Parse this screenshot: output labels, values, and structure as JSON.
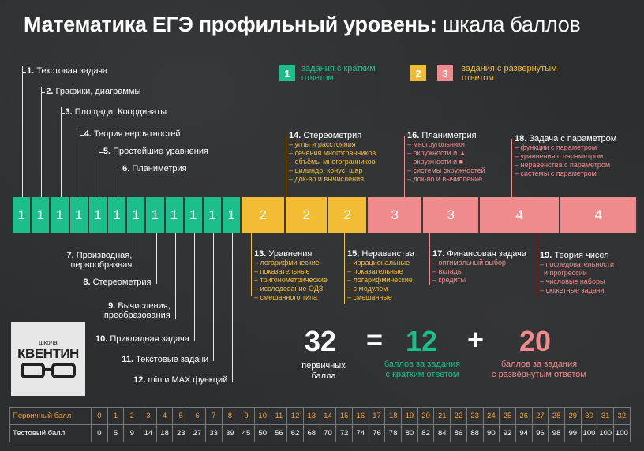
{
  "title": {
    "bold": "Математика ЕГЭ профильный уровень:",
    "light": " шкала баллов"
  },
  "legend": {
    "short": {
      "num": "1",
      "text": "задания с кратким ответом"
    },
    "long": {
      "num_a": "2",
      "num_b": "3",
      "text": "задания с развернутым ответом"
    },
    "colors": {
      "green": "#1bbf8c",
      "yellow": "#f2bd34",
      "pink": "#ef8b8c"
    }
  },
  "top_tasks": [
    {
      "n": "1.",
      "label": "Текстовая задача"
    },
    {
      "n": "2.",
      "label": "Графики, диаграммы"
    },
    {
      "n": "3.",
      "label": "Площади. Координаты"
    },
    {
      "n": "4.",
      "label": "Теория вероятностей"
    },
    {
      "n": "5.",
      "label": "Простейшие уравнения"
    },
    {
      "n": "6.",
      "label": "Планиметрия"
    }
  ],
  "bottom_tasks": [
    {
      "n": "7.",
      "label": "Производная,",
      "label2": "первообразная"
    },
    {
      "n": "8.",
      "label": "Стереометрия"
    },
    {
      "n": "9.",
      "label": "Вычисления,",
      "label2": "преобразования"
    },
    {
      "n": "10.",
      "label": "Прикладная задача"
    },
    {
      "n": "11.",
      "label": "Текстовые задачи"
    },
    {
      "n": "12.",
      "label": "min и MAX функций"
    }
  ],
  "bar": {
    "green": [
      "1",
      "1",
      "1",
      "1",
      "1",
      "1",
      "1",
      "1",
      "1",
      "1",
      "1",
      "1"
    ],
    "yellow": [
      "2",
      "2",
      "2"
    ],
    "pink": [
      "3",
      "3",
      "4",
      "4"
    ]
  },
  "part2_top": [
    {
      "n": "14.",
      "label": "Стереометрия",
      "items": [
        "– углы и расстояния",
        "– сечения многогранников",
        "– объёмы многогранников",
        "– цилиндр, конус, шар",
        "– док-во и вычисления"
      ]
    },
    {
      "n": "16.",
      "label": "Планиметрия",
      "items": [
        "– многоугольники",
        "– окружности и ▲",
        "– окружности и ■",
        "– системы окружностей",
        "– док-во и вычисление"
      ]
    },
    {
      "n": "18.",
      "label": "Задача с параметром",
      "items": [
        "– функции с параметром",
        "– уравнения с параметром",
        "– неравенства с параметром",
        "– системы с параметром"
      ]
    }
  ],
  "part2_bottom": [
    {
      "n": "13.",
      "label": "Уравнения",
      "items": [
        "– логарифмические",
        "– показательные",
        "– тригонометрические",
        "– исследование ОДЗ",
        "– смешанного типа"
      ]
    },
    {
      "n": "15.",
      "label": "Неравенства",
      "items": [
        "– иррациональные",
        "– показательные",
        "– логарифмические",
        "– с модулем",
        "– смешанные"
      ]
    },
    {
      "n": "17.",
      "label": "Финансовая задача",
      "items": [
        "– оптимальный выбор",
        "– вклады",
        "– кредиты"
      ]
    },
    {
      "n": "19.",
      "label": "Теория чисел",
      "items": [
        "– последовательности",
        "  и прогрессии",
        "– числовые наборы",
        "– сюжетные задачи"
      ]
    }
  ],
  "summary": {
    "total": "32",
    "total_label1": "первичных",
    "total_label2": "балла",
    "eq": "=",
    "short": "12",
    "short_label1": "баллов за задания",
    "short_label2": "с кратким ответом",
    "plus": "+",
    "long": "20",
    "long_label1": "баллов за задания",
    "long_label2": "с развёрнутым ответом"
  },
  "logo": {
    "top": "школа",
    "name": "КВЕНТИН"
  },
  "scale": {
    "row1_label": "Первичный балл",
    "row2_label": "Тестовый балл",
    "primary": [
      "0",
      "1",
      "2",
      "3",
      "4",
      "5",
      "6",
      "7",
      "8",
      "9",
      "10",
      "11",
      "12",
      "13",
      "14",
      "15",
      "16",
      "17",
      "18",
      "19",
      "20",
      "21",
      "22",
      "23",
      "24",
      "25",
      "26",
      "27",
      "28",
      "29",
      "30",
      "31",
      "32"
    ],
    "test": [
      "0",
      "5",
      "9",
      "14",
      "18",
      "23",
      "27",
      "33",
      "39",
      "45",
      "50",
      "56",
      "62",
      "68",
      "70",
      "72",
      "74",
      "76",
      "78",
      "80",
      "82",
      "84",
      "86",
      "88",
      "90",
      "92",
      "94",
      "96",
      "98",
      "99",
      "100",
      "100",
      "100"
    ]
  }
}
